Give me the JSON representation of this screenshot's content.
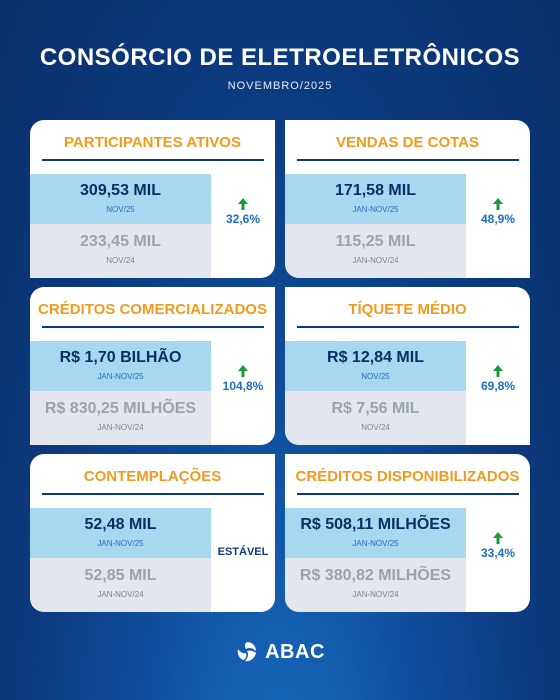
{
  "header": {
    "title": "CONSÓRCIO DE ELETROELETRÔNICOS",
    "subtitle": "NOVEMBRO/2025"
  },
  "cards": [
    {
      "title": "PARTICIPANTES ATIVOS",
      "current_value": "309,53 MIL",
      "current_period": "NOV/25",
      "previous_value": "233,45 MIL",
      "previous_period": "NOV/24",
      "change": "32,6%",
      "trend": "up"
    },
    {
      "title": "VENDAS DE COTAS",
      "current_value": "171,58 MIL",
      "current_period": "JAN-NOV/25",
      "previous_value": "115,25 MIL",
      "previous_period": "JAN-NOV/24",
      "change": "48,9%",
      "trend": "up"
    },
    {
      "title": "CRÉDITOS COMERCIALIZADOS",
      "current_value": "R$ 1,70 BILHÃO",
      "current_period": "JAN-NOV/25",
      "previous_value": "R$ 830,25 MILHÕES",
      "previous_period": "JAN-NOV/24",
      "change": "104,8%",
      "trend": "up"
    },
    {
      "title": "TÍQUETE MÉDIO",
      "current_value": "R$ 12,84 MIL",
      "current_period": "NOV/25",
      "previous_value": "R$ 7,56 MIL",
      "previous_period": "NOV/24",
      "change": "69,8%",
      "trend": "up"
    },
    {
      "title": "CONTEMPLAÇÕES",
      "current_value": "52,48 MIL",
      "current_period": "JAN-NOV/25",
      "previous_value": "52,85 MIL",
      "previous_period": "JAN-NOV/24",
      "change": "ESTÁVEL",
      "trend": "stable"
    },
    {
      "title": "CRÉDITOS DISPONIBILIZADOS",
      "current_value": "R$ 508,11 MILHÕES",
      "current_period": "JAN-NOV/25",
      "previous_value": "R$ 380,82 MILHÕES",
      "previous_period": "JAN-NOV/24",
      "change": "33,4%",
      "trend": "up"
    }
  ],
  "colors": {
    "accent": "#f39a1e",
    "navy": "#0c3a7e",
    "arrow": "#1a9a3a",
    "current_bg": "#a8d8f0",
    "previous_bg": "#e3e6ec"
  },
  "footer": {
    "logo_text": "ABAC",
    "logo_icon": "abac-swirl-logo"
  }
}
